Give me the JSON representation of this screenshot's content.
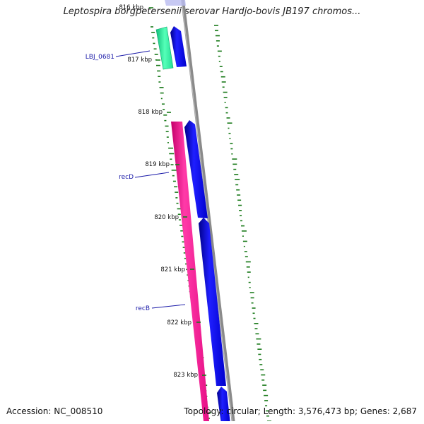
{
  "title": "Leptospira borgpetersenii serovar Hardjo-bovis JB197 chromos...",
  "footer": {
    "accession": "Accession: NC_008510",
    "stats": "Topology: circular; Length: 3,576,473 bp; Genes: 2,687"
  },
  "ticks": [
    "816 kbp",
    "817 kbp",
    "818 kbp",
    "819 kbp",
    "820 kbp",
    "821 kbp",
    "822 kbp",
    "823 kbp"
  ],
  "gene_labels": [
    "LBJ_0681",
    "recD",
    "recB"
  ],
  "colors": {
    "forward_cds": "#0000ee",
    "reverse_cds": "#ff1493",
    "other_feature": "#33ee99",
    "backbone": "#888888",
    "gc_skew": "#1a7a1a",
    "label_text": "#1a1aa8"
  }
}
